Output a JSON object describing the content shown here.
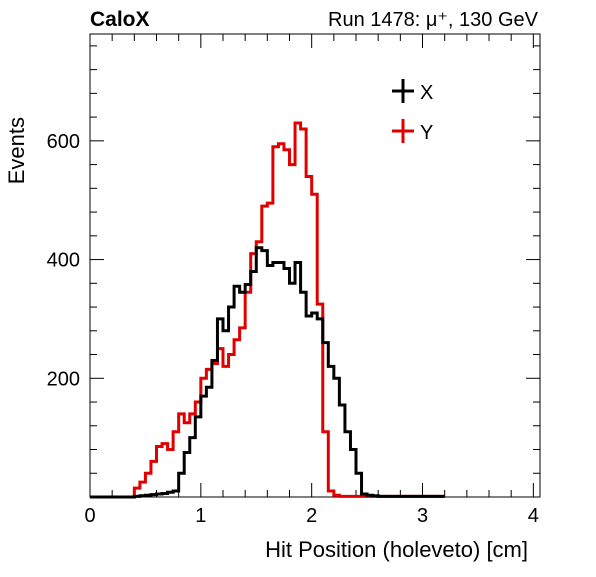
{
  "header": {
    "experiment_label": "CaloX",
    "run_label": "Run 1478: μ⁺, 130 GeV"
  },
  "chart_data": {
    "type": "line",
    "style": "step-histogram",
    "xlabel": "Hit Position (holeveto) [cm]",
    "ylabel": "Events",
    "xlim": [
      0,
      4.06
    ],
    "ylim": [
      0,
      780
    ],
    "bin_width": 0.05,
    "x_tick_labels": [
      "0",
      "1",
      "2",
      "3",
      "4"
    ],
    "x_ticks": [
      0,
      1,
      2,
      3,
      4
    ],
    "y_tick_labels": [
      "200",
      "400",
      "600"
    ],
    "y_ticks": [
      200,
      400,
      600
    ],
    "grid": false,
    "legend_position": "top-right",
    "series": [
      {
        "name": "X",
        "color": "#000000",
        "values": [
          0,
          0,
          0,
          0,
          0,
          0,
          0,
          0,
          0,
          0,
          0,
          0,
          0,
          0,
          0,
          0,
          1,
          1,
          2,
          2,
          3,
          3,
          4,
          4,
          5,
          5,
          6,
          6,
          8,
          8,
          10,
          10,
          40,
          40,
          75,
          75,
          100,
          100,
          135,
          135,
          170,
          170,
          185,
          185,
          230,
          230,
          300,
          300,
          280,
          280,
          320,
          320,
          355,
          355,
          345,
          345,
          358,
          358,
          380,
          380,
          420,
          420,
          415,
          415,
          390,
          390,
          395,
          395,
          395,
          395,
          385,
          385,
          360,
          360,
          395,
          395,
          345,
          345,
          305,
          305,
          310,
          310,
          300,
          300,
          260,
          260,
          220,
          220,
          200,
          200,
          155,
          155,
          110,
          110,
          80,
          80,
          40,
          40,
          5,
          5,
          3,
          3,
          2,
          2,
          1,
          1,
          1,
          1,
          1,
          1,
          1,
          1,
          1,
          1,
          1,
          1,
          1,
          1,
          1,
          1,
          1,
          1,
          1,
          1,
          1,
          1,
          1,
          1
        ]
      },
      {
        "name": "Y",
        "color": "#e00000",
        "values": [
          0,
          0,
          0,
          0,
          0,
          0,
          0,
          0,
          0,
          0,
          0,
          0,
          0,
          0,
          0,
          0,
          15,
          15,
          25,
          25,
          40,
          40,
          60,
          60,
          85,
          85,
          90,
          90,
          80,
          80,
          110,
          110,
          140,
          140,
          125,
          125,
          140,
          140,
          160,
          160,
          200,
          200,
          215,
          215,
          225,
          225,
          250,
          250,
          220,
          220,
          240,
          240,
          265,
          265,
          285,
          285,
          345,
          345,
          410,
          410,
          430,
          430,
          490,
          490,
          495,
          495,
          590,
          590,
          595,
          595,
          585,
          585,
          560,
          560,
          630,
          630,
          620,
          620,
          540,
          540,
          510,
          510,
          325,
          325,
          110,
          110,
          10,
          10,
          3,
          3,
          1,
          1,
          1,
          1,
          1,
          1,
          1,
          1,
          1,
          1,
          1,
          1,
          1,
          1,
          1,
          1,
          1,
          1,
          1,
          1,
          1,
          1,
          1,
          1,
          1,
          1,
          1,
          1,
          1,
          1,
          1,
          1,
          1,
          1,
          1,
          1,
          1,
          1
        ]
      }
    ]
  }
}
